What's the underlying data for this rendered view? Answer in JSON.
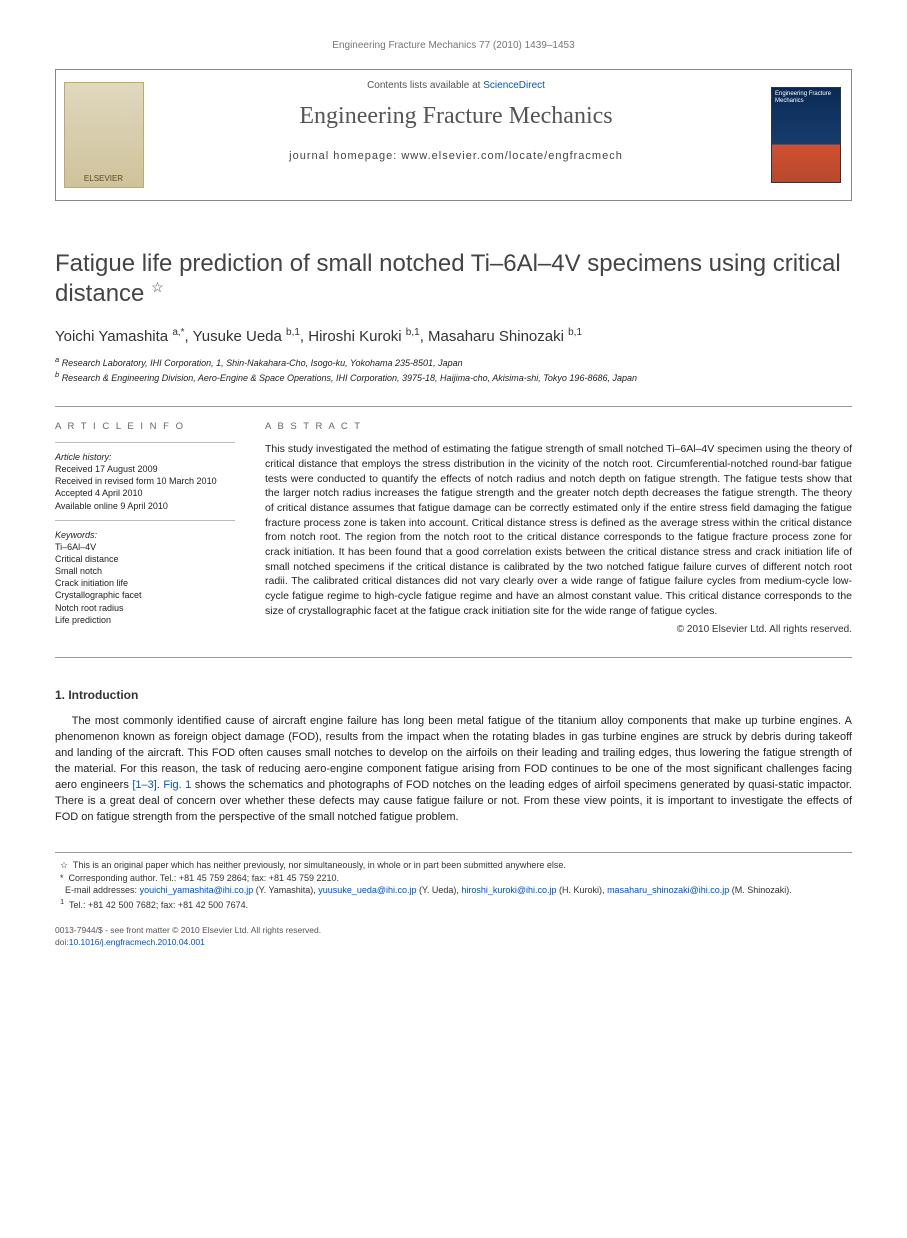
{
  "running_head": "Engineering Fracture Mechanics 77 (2010) 1439–1453",
  "header": {
    "publisher_name": "ELSEVIER",
    "contents_prefix": "Contents lists available at ",
    "contents_link": "ScienceDirect",
    "journal": "Engineering Fracture Mechanics",
    "homepage_label": "journal homepage: www.elsevier.com/locate/engfracmech",
    "cover_text": "Engineering Fracture Mechanics"
  },
  "paper": {
    "title": "Fatigue life prediction of small notched Ti–6Al–4V specimens using critical distance",
    "title_note_marker": "☆",
    "authors_html": "Yoichi Yamashita <sup>a,*</sup>, Yusuke Ueda <sup>b,1</sup>, Hiroshi Kuroki <sup>b,1</sup>, Masaharu Shinozaki <sup>b,1</sup>",
    "affiliations": {
      "a": "Research Laboratory, IHI Corporation, 1, Shin-Nakahara-Cho, Isogo-ku, Yokohama 235-8501, Japan",
      "b": "Research & Engineering Division, Aero-Engine & Space Operations, IHI Corporation, 3975-18, Haijima-cho, Akisima-shi, Tokyo 196-8686, Japan"
    }
  },
  "article_info": {
    "heading": "A R T I C L E   I N F O",
    "history_label": "Article history:",
    "history": [
      "Received 17 August 2009",
      "Received in revised form 10 March 2010",
      "Accepted 4 April 2010",
      "Available online 9 April 2010"
    ],
    "keywords_label": "Keywords:",
    "keywords": [
      "Ti–6Al–4V",
      "Critical distance",
      "Small notch",
      "Crack initiation life",
      "Crystallographic facet",
      "Notch root radius",
      "Life prediction"
    ]
  },
  "abstract": {
    "heading": "A B S T R A C T",
    "text": "This study investigated the method of estimating the fatigue strength of small notched Ti–6Al–4V specimen using the theory of critical distance that employs the stress distribution in the vicinity of the notch root. Circumferential-notched round-bar fatigue tests were conducted to quantify the effects of notch radius and notch depth on fatigue strength. The fatigue tests show that the larger notch radius increases the fatigue strength and the greater notch depth decreases the fatigue strength. The theory of critical distance assumes that fatigue damage can be correctly estimated only if the entire stress field damaging the fatigue fracture process zone is taken into account. Critical distance stress is defined as the average stress within the critical distance from notch root. The region from the notch root to the critical distance corresponds to the fatigue fracture process zone for crack initiation. It has been found that a good correlation exists between the critical distance stress and crack initiation life of small notched specimens if the critical distance is calibrated by the two notched fatigue failure curves of different notch root radii. The calibrated critical distances did not vary clearly over a wide range of fatigue failure cycles from medium-cycle low-cycle fatigue regime to high-cycle fatigue regime and have an almost constant value. This critical distance corresponds to the size of crystallographic facet at the fatigue crack initiation site for the wide range of fatigue cycles.",
    "copyright": "© 2010 Elsevier Ltd. All rights reserved."
  },
  "body": {
    "section_heading": "1. Introduction",
    "paragraph": "The most commonly identified cause of aircraft engine failure has long been metal fatigue of the titanium alloy components that make up turbine engines. A phenomenon known as foreign object damage (FOD), results from the impact when the rotating blades in gas turbine engines are struck by debris during takeoff and landing of the aircraft. This FOD often causes small notches to develop on the airfoils on their leading and trailing edges, thus lowering the fatigue strength of the material. For this reason, the task of reducing aero-engine component fatigue arising from FOD continues to be one of the most significant challenges facing aero engineers ",
    "refs": "[1–3]",
    "paragraph2": ". ",
    "fig_ref": "Fig. 1",
    "paragraph3": " shows the schematics and photographs of FOD notches on the leading edges of airfoil specimens generated by quasi-static impactor. There is a great deal of concern over whether these defects may cause fatigue failure or not. From these view points, it is important to investigate the effects of FOD on fatigue strength from the perspective of the small notched fatigue problem."
  },
  "footnotes": {
    "star": "This is an original paper which has neither previously, nor simultaneously, in whole or in part been submitted anywhere else.",
    "corr": "Corresponding author. Tel.: +81 45 759 2864; fax: +81 45 759 2210.",
    "emails_label": "E-mail addresses:",
    "emails": [
      {
        "addr": "youichi_yamashita@ihi.co.jp",
        "who": "(Y. Yamashita)"
      },
      {
        "addr": "yuusuke_ueda@ihi.co.jp",
        "who": "(Y. Ueda)"
      },
      {
        "addr": "hiroshi_kuroki@ihi.co.jp",
        "who": "(H. Kuroki)"
      },
      {
        "addr": "masaharu_shinozaki@ihi.co.jp",
        "who": "(M. Shinozaki)."
      }
    ],
    "one": "Tel.: +81 42 500 7682; fax: +81 42 500 7674."
  },
  "bottom": {
    "issn": "0013-7944/$ - see front matter © 2010 Elsevier Ltd. All rights reserved.",
    "doi_label": "doi:",
    "doi": "10.1016/j.engfracmech.2010.04.001"
  },
  "colors": {
    "link": "#0050cc",
    "rule": "#999999",
    "heading_gray": "#666666"
  }
}
